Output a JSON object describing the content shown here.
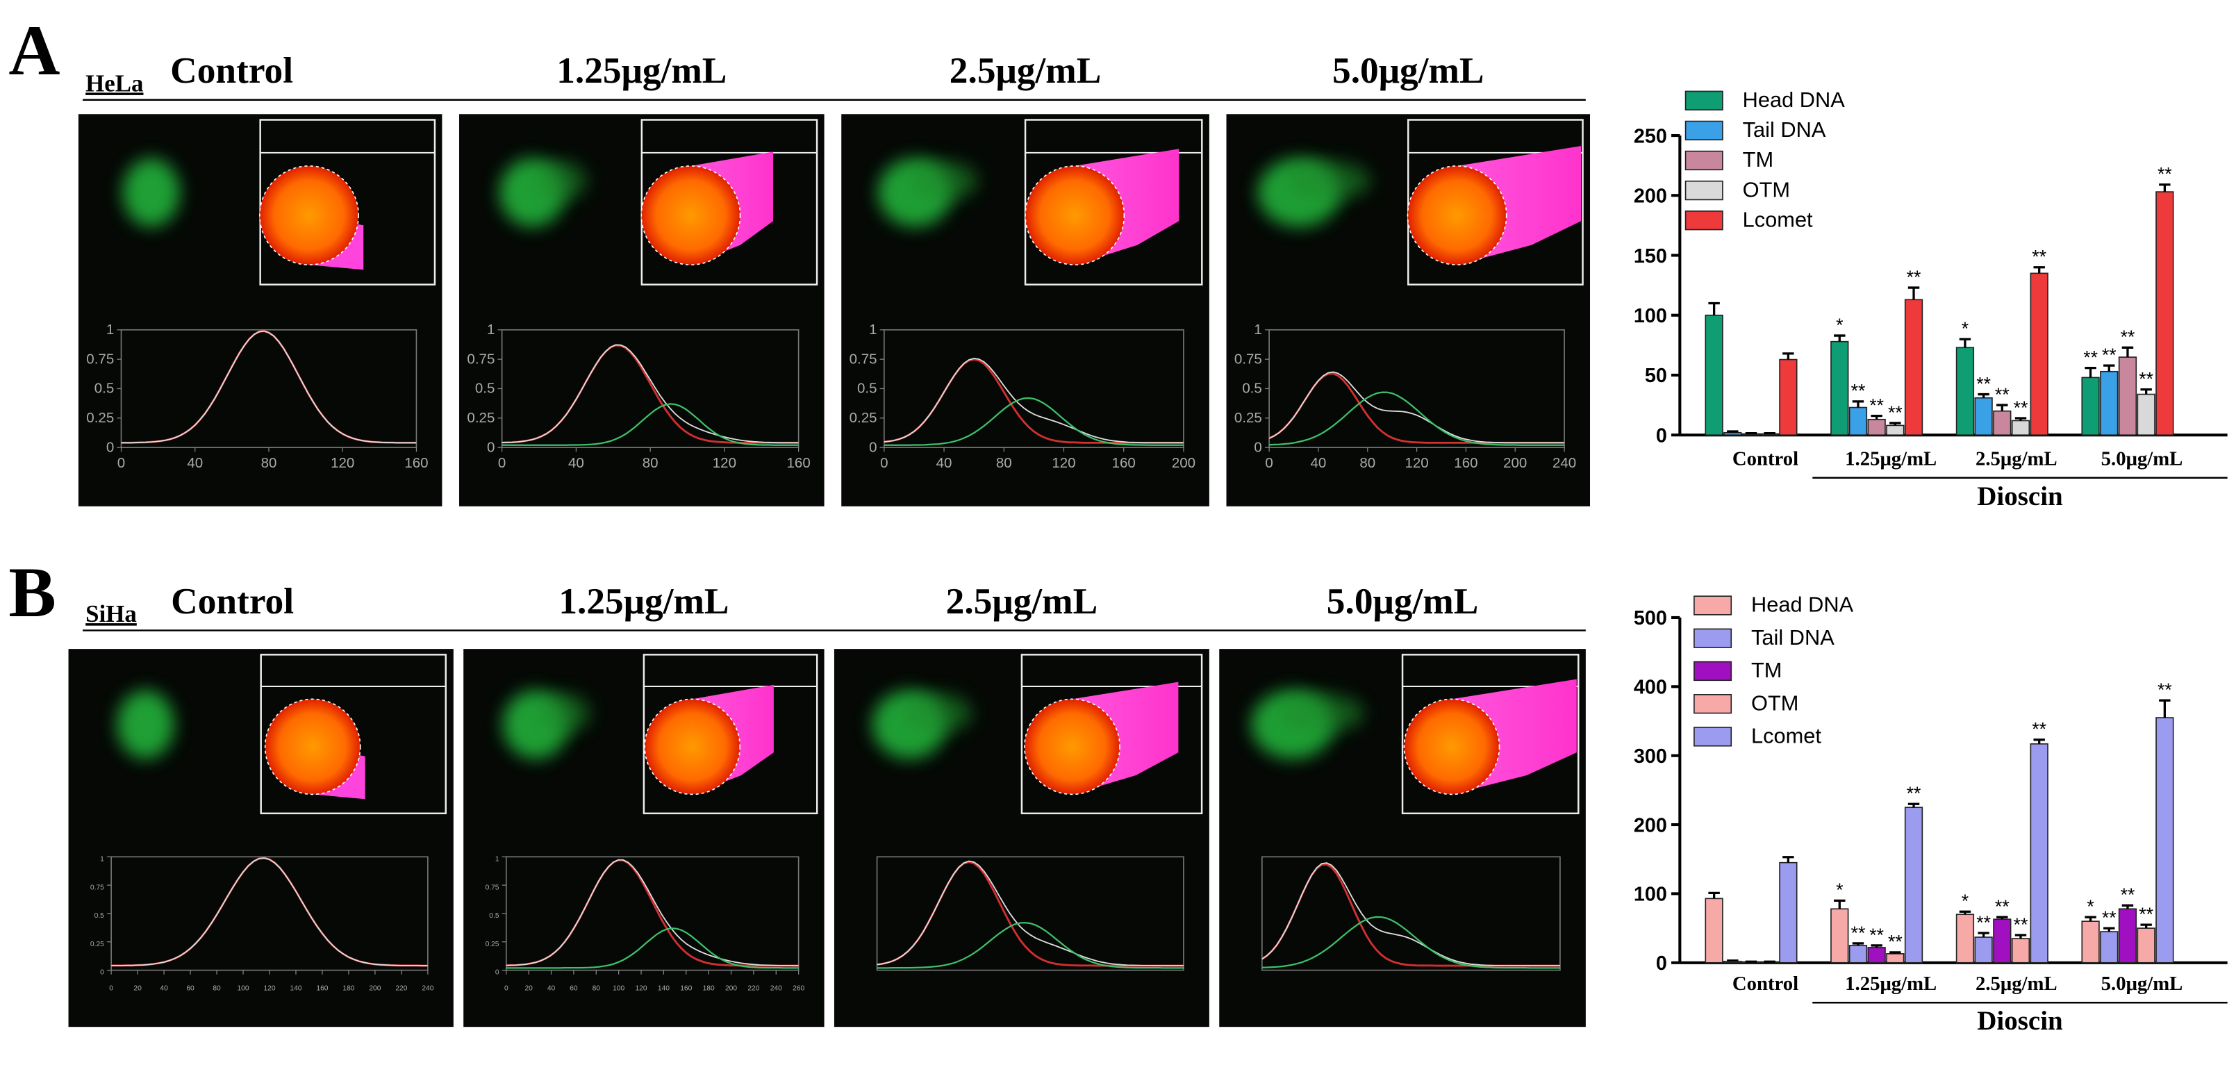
{
  "figure": {
    "rows": [
      {
        "label": "A",
        "cell_line": "HeLa",
        "conditions": [
          "Control",
          "1.25μg/mL",
          "2.5μg/mL",
          "5.0μg/mL"
        ],
        "profiles": [
          {
            "xlim": [
              0,
              160
            ],
            "xticks": [
              0,
              40,
              80,
              120,
              160
            ],
            "ylim": [
              0,
              1
            ],
            "yticks": [
              0,
              0.25,
              0.5,
              0.75,
              1
            ]
          },
          {
            "xlim": [
              0,
              160
            ],
            "xticks": [
              0,
              40,
              80,
              120,
              160
            ],
            "ylim": [
              0,
              1
            ],
            "yticks": [
              0,
              0.25,
              0.5,
              0.75,
              1
            ]
          },
          {
            "xlim": [
              0,
              200
            ],
            "xticks": [
              0,
              40,
              80,
              120,
              160,
              200
            ],
            "ylim": [
              0,
              1
            ],
            "yticks": [
              0,
              0.25,
              0.5,
              0.75,
              1
            ]
          },
          {
            "xlim": [
              0,
              240
            ],
            "xticks": [
              0,
              40,
              80,
              120,
              160,
              200,
              240
            ],
            "ylim": [
              0,
              1
            ],
            "yticks": [
              0,
              0.25,
              0.5,
              0.75,
              1
            ]
          }
        ]
      },
      {
        "label": "B",
        "cell_line": "SiHa",
        "conditions": [
          "Control",
          "1.25μg/mL",
          "2.5μg/mL",
          "5.0μg/mL"
        ],
        "profiles": [
          {
            "xlim": [
              0,
              240
            ],
            "xticks": [
              0,
              20,
              40,
              60,
              80,
              100,
              120,
              140,
              160,
              180,
              200,
              220,
              240
            ],
            "ylim": [
              0,
              1
            ],
            "yticks": [
              0,
              0.25,
              0.5,
              0.75,
              1
            ]
          },
          {
            "xlim": [
              0,
              260
            ],
            "xticks": [
              0,
              20,
              40,
              60,
              80,
              100,
              120,
              140,
              160,
              180,
              200,
              220,
              240,
              260
            ],
            "ylim": [
              0,
              1
            ],
            "yticks": [
              0,
              0.25,
              0.5,
              0.75,
              1
            ]
          }
        ]
      }
    ]
  },
  "chart_data": [
    {
      "type": "bar",
      "categories": [
        "Control",
        "1.25μg/mL",
        "2.5μg/mL",
        "5.0μg/mL"
      ],
      "group_label": "Dioscin",
      "ylim": [
        0,
        250
      ],
      "yticks": [
        0,
        50,
        100,
        150,
        200,
        250
      ],
      "legend": "top-left",
      "series": [
        {
          "name": "Head DNA",
          "color": "#0f9e73",
          "values": [
            100,
            78,
            73,
            48
          ],
          "errors": [
            10,
            5,
            7,
            8
          ],
          "significance": [
            null,
            "*",
            "*",
            "**"
          ]
        },
        {
          "name": "Tail DNA",
          "color": "#3aa0e8",
          "values": [
            2,
            23,
            31,
            53
          ],
          "errors": [
            1,
            5,
            3,
            5
          ],
          "significance": [
            null,
            "**",
            "**",
            "**"
          ]
        },
        {
          "name": "TM",
          "color": "#c8879d",
          "values": [
            1,
            13,
            20,
            65
          ],
          "errors": [
            0.5,
            3,
            5,
            8
          ],
          "significance": [
            null,
            "**",
            "**",
            "**"
          ]
        },
        {
          "name": "OTM",
          "color": "#d9d9d9",
          "values": [
            1,
            8,
            12,
            34
          ],
          "errors": [
            0.5,
            2,
            2,
            4
          ],
          "significance": [
            null,
            "**",
            "**",
            "**"
          ]
        },
        {
          "name": "Lcomet",
          "color": "#ee3a3a",
          "values": [
            63,
            113,
            135,
            203
          ],
          "errors": [
            5,
            10,
            5,
            6
          ],
          "significance": [
            null,
            "**",
            "**",
            "**"
          ]
        }
      ]
    },
    {
      "type": "bar",
      "categories": [
        "Control",
        "1.25μg/mL",
        "2.5μg/mL",
        "5.0μg/mL"
      ],
      "group_label": "Dioscin",
      "ylim": [
        0,
        500
      ],
      "yticks": [
        0,
        100,
        200,
        300,
        400,
        500
      ],
      "legend": "top-left",
      "series": [
        {
          "name": "Head DNA",
          "color": "#f6a9a6",
          "values": [
            93,
            78,
            70,
            60
          ],
          "errors": [
            8,
            12,
            4,
            6
          ],
          "significance": [
            null,
            "*",
            "*",
            "*"
          ]
        },
        {
          "name": "Tail DNA",
          "color": "#9b9cf0",
          "values": [
            2,
            25,
            37,
            45
          ],
          "errors": [
            1,
            3,
            6,
            5
          ],
          "significance": [
            null,
            "**",
            "**",
            "**"
          ]
        },
        {
          "name": "TM",
          "color": "#a010c0",
          "values": [
            1,
            22,
            63,
            78
          ],
          "errors": [
            0.5,
            3,
            3,
            5
          ],
          "significance": [
            null,
            "**",
            "**",
            "**"
          ]
        },
        {
          "name": "OTM",
          "color": "#f6a9a6",
          "values": [
            1,
            13,
            35,
            50
          ],
          "errors": [
            0.5,
            2,
            5,
            5
          ],
          "significance": [
            null,
            "**",
            "**",
            "**"
          ]
        },
        {
          "name": "Lcomet",
          "color": "#9b9cf0",
          "values": [
            145,
            225,
            317,
            355
          ],
          "errors": [
            8,
            5,
            6,
            25
          ],
          "significance": [
            null,
            "**",
            "**",
            "**"
          ]
        }
      ]
    }
  ]
}
